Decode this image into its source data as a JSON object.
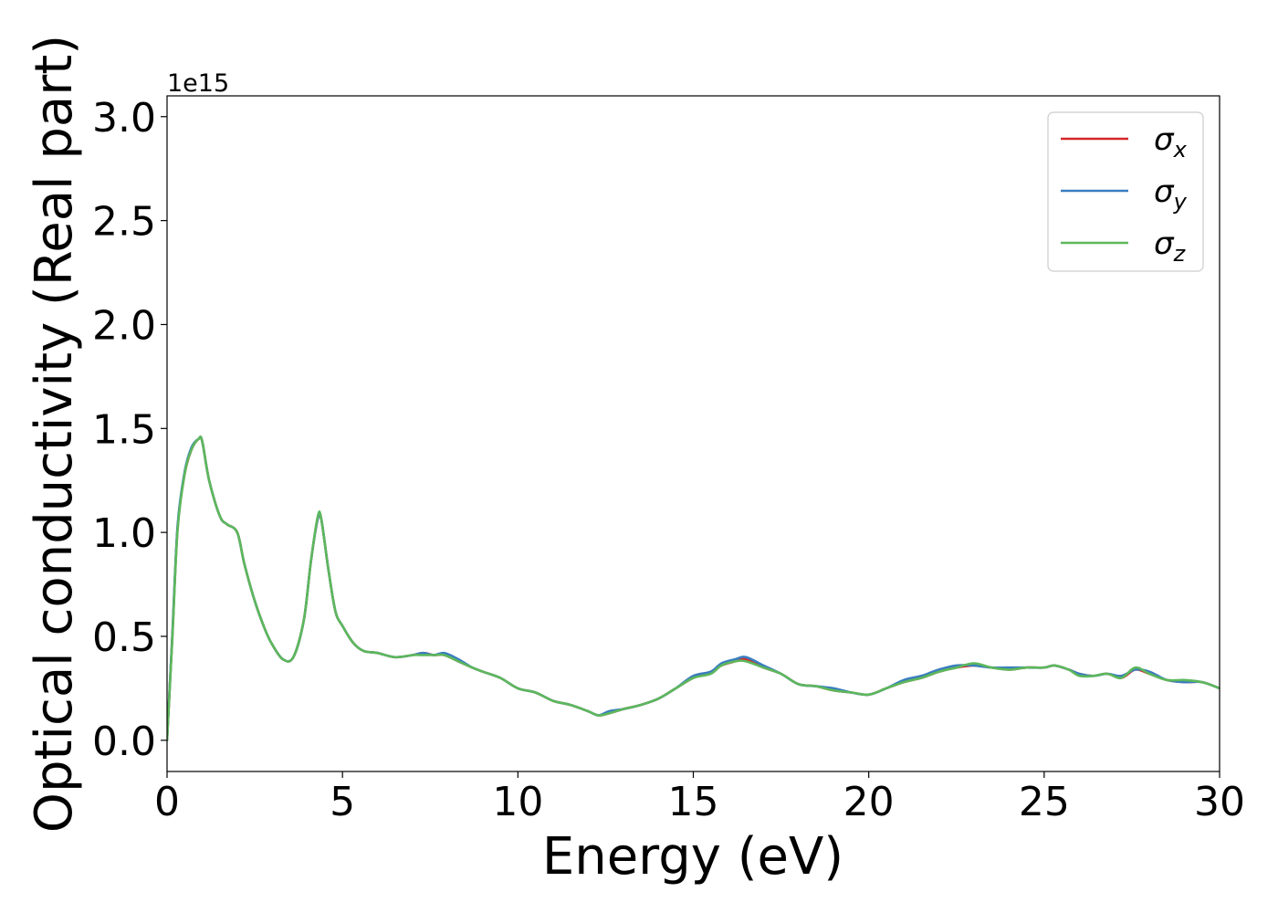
{
  "chart_data": {
    "type": "line",
    "title": "",
    "xlabel": "Energy (eV)",
    "ylabel": "Optical conductivity (Real part)",
    "y_offset_text": "1e15",
    "xlim": [
      0,
      30
    ],
    "ylim": [
      -0.15,
      3.1
    ],
    "xticks": [
      0,
      5,
      10,
      15,
      20,
      25,
      30
    ],
    "yticks": [
      0.0,
      0.5,
      1.0,
      1.5,
      2.0,
      2.5,
      3.0
    ],
    "xtick_labels": [
      "0",
      "5",
      "10",
      "15",
      "20",
      "25",
      "30"
    ],
    "ytick_labels": [
      "0.0",
      "0.5",
      "1.0",
      "1.5",
      "2.0",
      "2.5",
      "3.0"
    ],
    "grid": false,
    "legend_position": "upper-right",
    "series": [
      {
        "name": "σ",
        "sub": "x",
        "color": "#d62728",
        "x": [
          0,
          0.15,
          0.3,
          0.5,
          0.7,
          0.9,
          1.0,
          1.2,
          1.5,
          1.7,
          2.0,
          2.2,
          2.5,
          2.8,
          3.0,
          3.3,
          3.6,
          3.9,
          4.1,
          4.3,
          4.4,
          4.6,
          4.8,
          5.0,
          5.3,
          5.6,
          6.0,
          6.5,
          7.0,
          7.3,
          7.6,
          7.9,
          8.3,
          8.7,
          9.0,
          9.5,
          10.0,
          10.5,
          11.0,
          11.5,
          12.0,
          12.3,
          12.6,
          13.0,
          13.5,
          14.0,
          14.5,
          15.0,
          15.5,
          15.8,
          16.2,
          16.5,
          17.0,
          17.5,
          18.0,
          18.5,
          19.0,
          19.5,
          20.0,
          20.5,
          21.0,
          21.5,
          22.0,
          22.5,
          23.0,
          23.5,
          24.0,
          24.5,
          25.0,
          25.3,
          25.7,
          26.0,
          26.4,
          26.8,
          27.2,
          27.6,
          28.0,
          28.5,
          29.0,
          29.5,
          30.0
        ],
        "y": [
          0.0,
          0.5,
          1.02,
          1.28,
          1.4,
          1.45,
          1.44,
          1.25,
          1.08,
          1.04,
          1.0,
          0.85,
          0.67,
          0.53,
          0.46,
          0.39,
          0.4,
          0.58,
          0.86,
          1.07,
          1.06,
          0.82,
          0.62,
          0.55,
          0.47,
          0.43,
          0.42,
          0.4,
          0.41,
          0.42,
          0.41,
          0.41,
          0.38,
          0.35,
          0.33,
          0.3,
          0.25,
          0.23,
          0.19,
          0.17,
          0.14,
          0.12,
          0.13,
          0.15,
          0.17,
          0.2,
          0.25,
          0.3,
          0.33,
          0.36,
          0.38,
          0.39,
          0.35,
          0.32,
          0.27,
          0.26,
          0.24,
          0.23,
          0.22,
          0.25,
          0.28,
          0.3,
          0.33,
          0.35,
          0.36,
          0.35,
          0.34,
          0.35,
          0.35,
          0.36,
          0.34,
          0.32,
          0.31,
          0.32,
          0.3,
          0.34,
          0.32,
          0.29,
          0.28,
          0.28,
          0.25
        ]
      },
      {
        "name": "σ",
        "sub": "y",
        "color": "#3a7dbf",
        "x": [
          0,
          0.15,
          0.3,
          0.5,
          0.7,
          0.9,
          1.0,
          1.2,
          1.5,
          1.7,
          2.0,
          2.2,
          2.5,
          2.8,
          3.0,
          3.3,
          3.6,
          3.9,
          4.1,
          4.3,
          4.4,
          4.6,
          4.8,
          5.0,
          5.3,
          5.6,
          6.0,
          6.5,
          7.0,
          7.3,
          7.6,
          7.9,
          8.3,
          8.7,
          9.0,
          9.5,
          10.0,
          10.5,
          11.0,
          11.5,
          12.0,
          12.3,
          12.6,
          13.0,
          13.5,
          14.0,
          14.5,
          15.0,
          15.5,
          15.8,
          16.2,
          16.5,
          17.0,
          17.5,
          18.0,
          18.5,
          19.0,
          19.5,
          20.0,
          20.5,
          21.0,
          21.5,
          22.0,
          22.5,
          23.0,
          23.5,
          24.0,
          24.5,
          25.0,
          25.3,
          25.7,
          26.0,
          26.4,
          26.8,
          27.2,
          27.6,
          28.0,
          28.5,
          29.0,
          29.5,
          30.0
        ],
        "y": [
          0.0,
          0.51,
          1.03,
          1.29,
          1.41,
          1.45,
          1.44,
          1.25,
          1.08,
          1.04,
          1.0,
          0.85,
          0.67,
          0.53,
          0.46,
          0.39,
          0.4,
          0.58,
          0.86,
          1.07,
          1.06,
          0.82,
          0.62,
          0.55,
          0.47,
          0.43,
          0.42,
          0.4,
          0.41,
          0.42,
          0.41,
          0.42,
          0.39,
          0.35,
          0.33,
          0.3,
          0.25,
          0.23,
          0.19,
          0.17,
          0.14,
          0.12,
          0.14,
          0.15,
          0.17,
          0.2,
          0.25,
          0.31,
          0.33,
          0.37,
          0.39,
          0.4,
          0.36,
          0.32,
          0.27,
          0.26,
          0.25,
          0.23,
          0.22,
          0.25,
          0.29,
          0.31,
          0.34,
          0.36,
          0.36,
          0.35,
          0.35,
          0.35,
          0.35,
          0.36,
          0.34,
          0.32,
          0.31,
          0.32,
          0.31,
          0.34,
          0.33,
          0.29,
          0.28,
          0.28,
          0.25
        ]
      },
      {
        "name": "σ",
        "sub": "z",
        "color": "#5cb85c",
        "x": [
          0,
          0.15,
          0.3,
          0.5,
          0.7,
          0.9,
          1.0,
          1.2,
          1.5,
          1.7,
          2.0,
          2.2,
          2.5,
          2.8,
          3.0,
          3.3,
          3.6,
          3.9,
          4.1,
          4.3,
          4.4,
          4.6,
          4.8,
          5.0,
          5.3,
          5.6,
          6.0,
          6.5,
          7.0,
          7.3,
          7.6,
          7.9,
          8.3,
          8.7,
          9.0,
          9.5,
          10.0,
          10.5,
          11.0,
          11.5,
          12.0,
          12.3,
          12.6,
          13.0,
          13.5,
          14.0,
          14.5,
          15.0,
          15.5,
          15.8,
          16.2,
          16.5,
          17.0,
          17.5,
          18.0,
          18.5,
          19.0,
          19.5,
          20.0,
          20.5,
          21.0,
          21.5,
          22.0,
          22.5,
          23.0,
          23.5,
          24.0,
          24.5,
          25.0,
          25.3,
          25.7,
          26.0,
          26.4,
          26.8,
          27.2,
          27.6,
          28.0,
          28.5,
          29.0,
          29.5,
          30.0
        ],
        "y": [
          0.0,
          0.49,
          1.01,
          1.28,
          1.4,
          1.45,
          1.44,
          1.25,
          1.08,
          1.04,
          1.0,
          0.85,
          0.67,
          0.53,
          0.46,
          0.39,
          0.4,
          0.58,
          0.86,
          1.08,
          1.06,
          0.82,
          0.62,
          0.55,
          0.47,
          0.43,
          0.42,
          0.4,
          0.41,
          0.41,
          0.41,
          0.41,
          0.38,
          0.35,
          0.33,
          0.3,
          0.25,
          0.23,
          0.19,
          0.17,
          0.14,
          0.12,
          0.13,
          0.15,
          0.17,
          0.2,
          0.25,
          0.3,
          0.32,
          0.36,
          0.38,
          0.38,
          0.35,
          0.32,
          0.27,
          0.26,
          0.24,
          0.23,
          0.22,
          0.25,
          0.28,
          0.3,
          0.33,
          0.35,
          0.37,
          0.35,
          0.34,
          0.35,
          0.35,
          0.36,
          0.34,
          0.31,
          0.31,
          0.32,
          0.3,
          0.35,
          0.32,
          0.29,
          0.29,
          0.28,
          0.25
        ]
      }
    ]
  }
}
